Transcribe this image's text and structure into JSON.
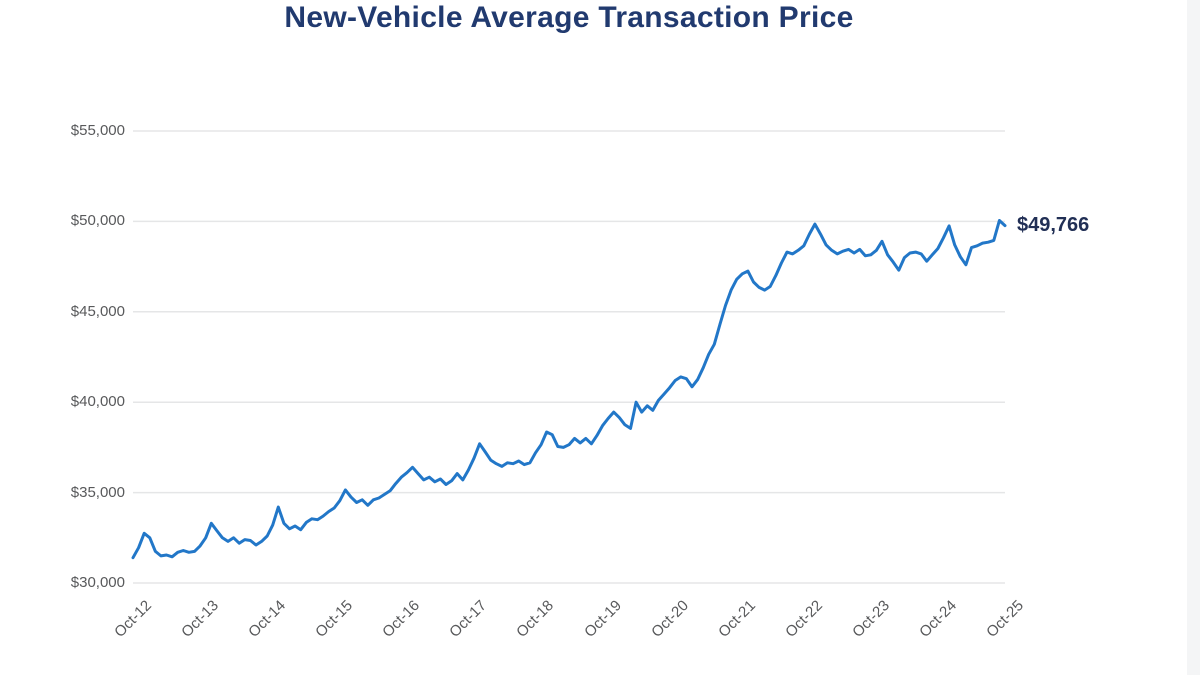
{
  "page": {
    "background_color": "#ffffff",
    "right_edge_band_color": "#f4f5f6"
  },
  "colors": {
    "title": "#213a6f",
    "axis_labels": "#58595b",
    "gridline": "#e5e6e7",
    "line": "#2277c8",
    "end_label": "#212f55"
  },
  "chart_data": {
    "type": "line",
    "title": "New-Vehicle Average Transaction Price",
    "xlabel": "",
    "ylabel": "",
    "grid": "horizontal",
    "legend": "none",
    "ylim": [
      30000,
      55000
    ],
    "y_tick_step": 5000,
    "y_ticks": [
      {
        "value": 55000,
        "label": "$55,000"
      },
      {
        "value": 50000,
        "label": "$50,000"
      },
      {
        "value": 45000,
        "label": "$45,000"
      },
      {
        "value": 40000,
        "label": "$40,000"
      },
      {
        "value": 35000,
        "label": "$35,000"
      },
      {
        "value": 30000,
        "label": "$30,000"
      }
    ],
    "x_tick_labels": [
      "Oct-12",
      "Oct-13",
      "Oct-14",
      "Oct-15",
      "Oct-16",
      "Oct-17",
      "Oct-18",
      "Oct-19",
      "Oct-20",
      "Oct-21",
      "Oct-22",
      "Oct-23",
      "Oct-24",
      "Oct-25"
    ],
    "x_tick_rotation_deg": 45,
    "months_between_ticks": 12,
    "x_start": "Oct-12",
    "x_end": "Oct-25",
    "x_interval": "monthly",
    "total_months": 156,
    "end_label": "$49,766",
    "end_value": 49766,
    "values": [
      31400,
      31950,
      32750,
      32500,
      31750,
      31500,
      31550,
      31450,
      31700,
      31800,
      31700,
      31750,
      32050,
      32500,
      33300,
      32900,
      32500,
      32300,
      32500,
      32200,
      32400,
      32350,
      32100,
      32300,
      32600,
      33200,
      34200,
      33300,
      33000,
      33150,
      32950,
      33350,
      33550,
      33500,
      33700,
      33950,
      34150,
      34550,
      35150,
      34750,
      34450,
      34600,
      34300,
      34600,
      34700,
      34900,
      35100,
      35500,
      35850,
      36100,
      36400,
      36050,
      35700,
      35850,
      35600,
      35750,
      35450,
      35650,
      36050,
      35700,
      36250,
      36900,
      37700,
      37250,
      36800,
      36600,
      36450,
      36650,
      36600,
      36750,
      36550,
      36650,
      37200,
      37650,
      38350,
      38200,
      37550,
      37500,
      37650,
      38000,
      37750,
      38000,
      37700,
      38150,
      38700,
      39100,
      39450,
      39150,
      38750,
      38550,
      40000,
      39450,
      39800,
      39550,
      40100,
      40450,
      40800,
      41200,
      41400,
      41300,
      40850,
      41250,
      41900,
      42650,
      43200,
      44300,
      45350,
      46200,
      46800,
      47100,
      47250,
      46650,
      46350,
      46200,
      46400,
      47000,
      47700,
      48300,
      48200,
      48400,
      48650,
      49300,
      49850,
      49300,
      48700,
      48400,
      48200,
      48350,
      48450,
      48250,
      48450,
      48100,
      48150,
      48400,
      48900,
      48150,
      47750,
      47300,
      48000,
      48250,
      48300,
      48200,
      47800,
      48150,
      48500,
      49100,
      49750,
      48700,
      48050,
      47600,
      48550,
      48650,
      48800,
      48850,
      48950,
      50050,
      49766
    ]
  }
}
